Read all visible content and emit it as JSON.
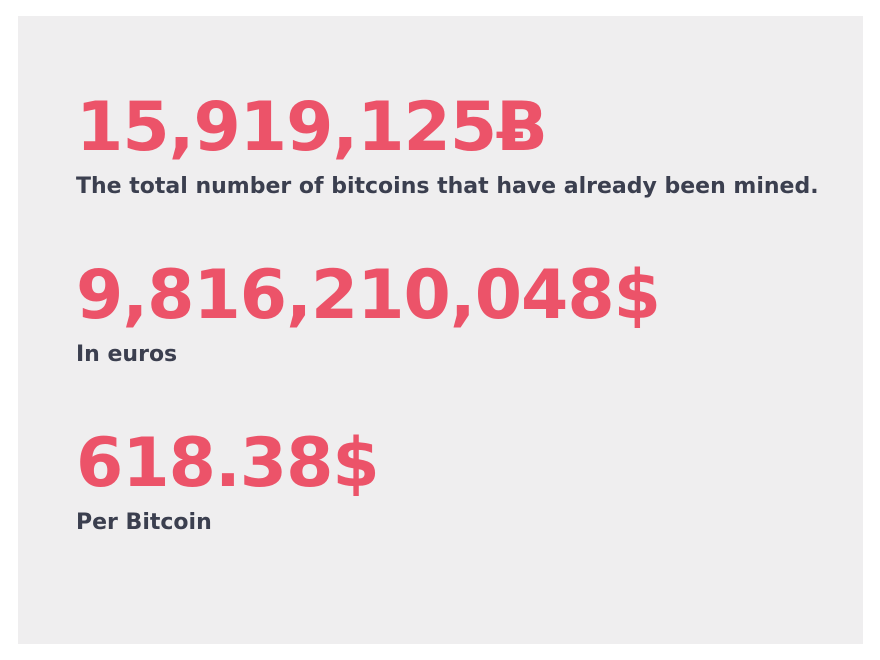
{
  "stats": [
    {
      "value": "15,919,125Ƀ",
      "label": "The total number of bitcoins that have already been mined."
    },
    {
      "value": "9,816,210,048$",
      "label": "In euros"
    },
    {
      "value": "618.38$",
      "label": "Per Bitcoin"
    }
  ],
  "colors": {
    "value": "#ec5369",
    "label": "#3b3f4f",
    "panel_background": "#efeeef",
    "page_background": "#ffffff"
  }
}
